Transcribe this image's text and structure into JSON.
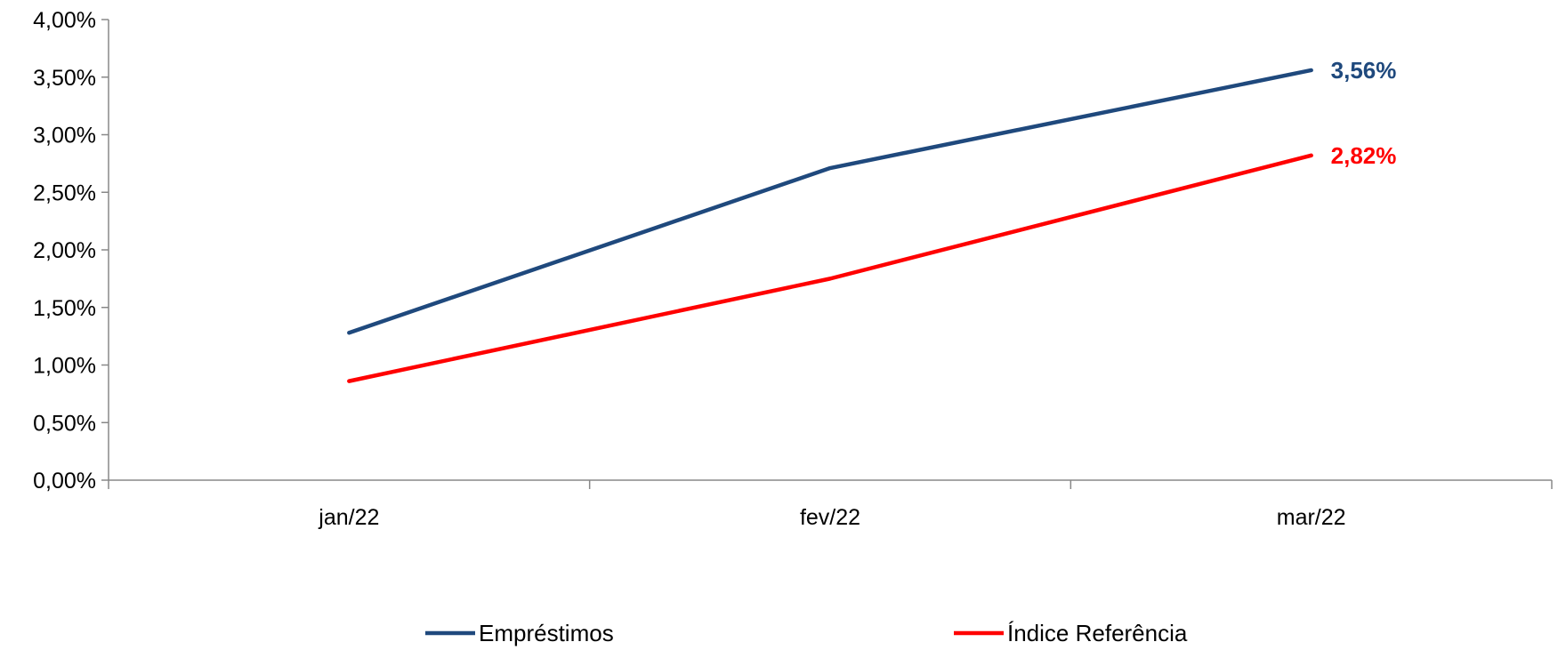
{
  "chart_data": {
    "type": "line",
    "categories": [
      "jan/22",
      "fev/22",
      "mar/22"
    ],
    "series": [
      {
        "name": "Empréstimos",
        "values": [
          1.28,
          2.71,
          3.56
        ],
        "color": "#1F497D",
        "end_label": "3,56%"
      },
      {
        "name": "Índice Referência",
        "values": [
          0.86,
          1.75,
          2.82
        ],
        "color": "#FF0000",
        "end_label": "2,82%"
      }
    ],
    "y_ticks": [
      "0,00%",
      "0,50%",
      "1,00%",
      "1,50%",
      "2,00%",
      "2,50%",
      "3,00%",
      "3,50%",
      "4,00%"
    ],
    "ylim": [
      0,
      4
    ],
    "grid": false,
    "legend_position": "bottom",
    "title": "",
    "xlabel": "",
    "ylabel": ""
  }
}
